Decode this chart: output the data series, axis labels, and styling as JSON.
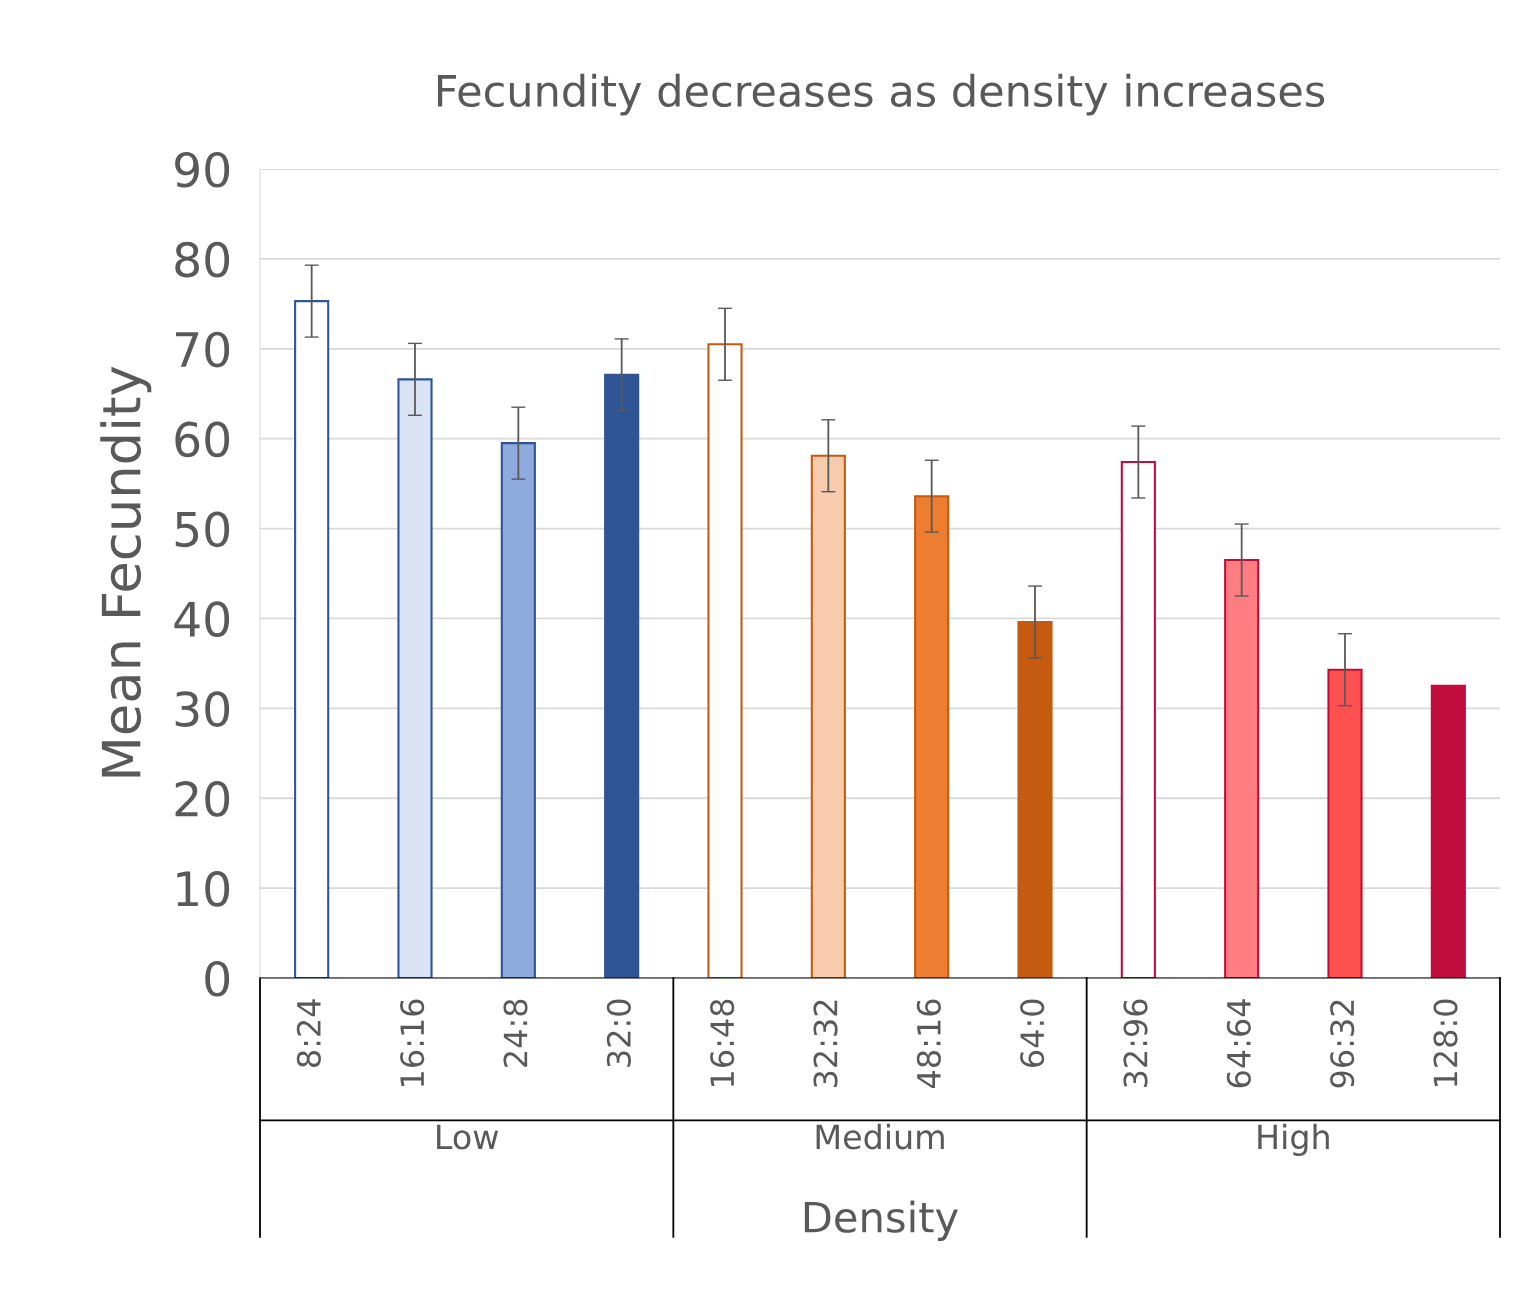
{
  "chart_data": {
    "type": "bar",
    "title": "Fecundity decreases as density increases",
    "xlabel": "Density",
    "ylabel": "Mean Fecundity",
    "categories": [
      "8:24",
      "16:16",
      "24:8",
      "32:0",
      "16:48",
      "32:32",
      "48:16",
      "64:0",
      "32:96",
      "64:64",
      "96:32",
      "128:0"
    ],
    "values": [
      75.3,
      66.6,
      59.5,
      67.1,
      70.5,
      58.1,
      53.6,
      39.6,
      57.4,
      46.5,
      34.3,
      32.5
    ],
    "errors": [
      4,
      4,
      4,
      4,
      4,
      4,
      4,
      4,
      4,
      4,
      4,
      null
    ],
    "colors": [
      "#ffffff",
      "#dae3f3",
      "#8faadc",
      "#2f5597",
      "#ffffff",
      "#f8cbad",
      "#ed7d31",
      "#c55a11",
      "#ffffff",
      "#ff7c80",
      "#ff5050",
      "#c00d3e"
    ],
    "annotations": [
      "Low",
      "Medium",
      "High"
    ],
    "ylim": [
      0,
      90
    ],
    "yticks": [
      0,
      10,
      20,
      30,
      40,
      50,
      60,
      70,
      80,
      90
    ],
    "grid": "y"
  }
}
